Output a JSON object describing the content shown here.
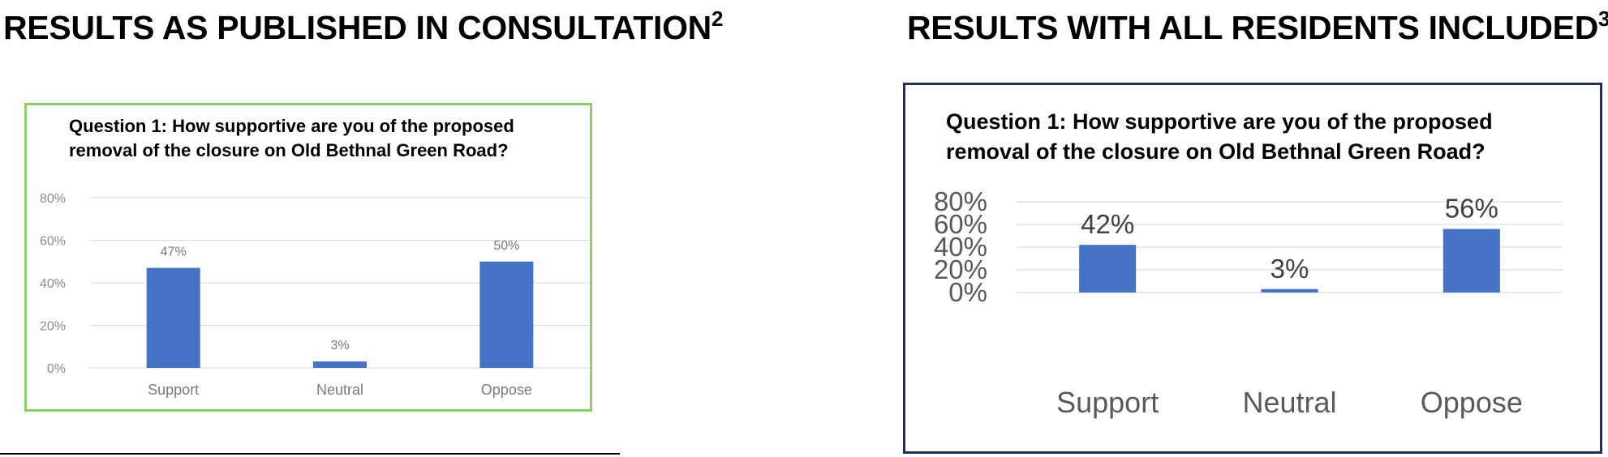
{
  "headings": {
    "left": "RESULTS AS PUBLISHED IN CONSULTATION",
    "left_note": "2",
    "right": "RESULTS WITH ALL RESIDENTS INCLUDED",
    "right_note": "3"
  },
  "colors": {
    "bar": "#4472c4",
    "grid": "#d9d9d9",
    "left_frame": "#8fce63",
    "right_frame": "#1f2d5a"
  },
  "chart_data": [
    {
      "type": "bar",
      "title": "Question 1: How supportive are you of the proposed removal of the closure on Old Bethnal Green Road?",
      "categories": [
        "Support",
        "Neutral",
        "Oppose"
      ],
      "values": [
        47,
        3,
        50
      ],
      "value_labels": [
        "47%",
        "3%",
        "50%"
      ],
      "yticks": [
        "0%",
        "20%",
        "40%",
        "60%",
        "80%"
      ],
      "ylim": [
        0,
        80
      ],
      "grid": true
    },
    {
      "type": "bar",
      "title": "Question 1: How supportive are you of the proposed removal of the closure on Old Bethnal Green Road?",
      "categories": [
        "Support",
        "Neutral",
        "Oppose"
      ],
      "values": [
        42,
        3,
        56
      ],
      "value_labels": [
        "42%",
        "3%",
        "56%"
      ],
      "yticks": [
        "0%",
        "20%",
        "40%",
        "60%",
        "80%"
      ],
      "ylim": [
        0,
        80
      ],
      "grid": true
    }
  ]
}
